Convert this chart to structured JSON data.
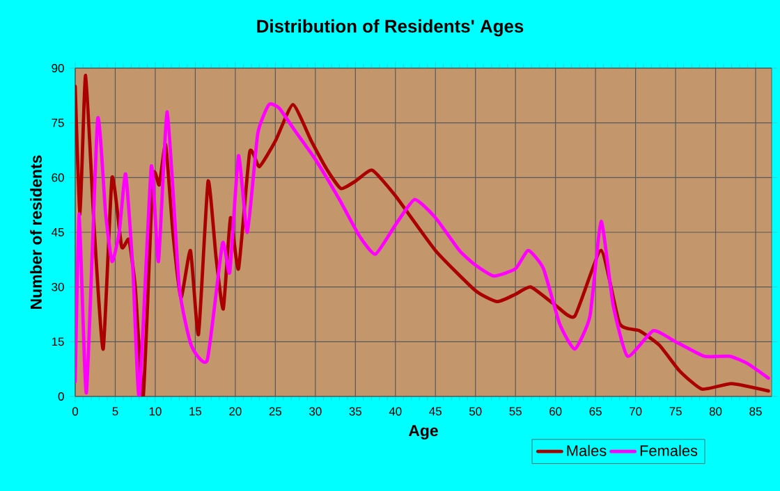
{
  "chart_data": {
    "type": "line",
    "title": "Distribution of Residents' Ages",
    "xlabel": "Age",
    "ylabel": "Number of residents",
    "xlim": [
      0,
      87
    ],
    "xticks": [
      0,
      5,
      10,
      15,
      20,
      25,
      30,
      35,
      40,
      45,
      50,
      55,
      60,
      65,
      70,
      75,
      80,
      85
    ],
    "ylim": [
      0,
      90
    ],
    "yticks": [
      0,
      15,
      30,
      45,
      60,
      75,
      90
    ],
    "grid": true,
    "legend": "bottom",
    "marker": "none",
    "line_style": "solid",
    "series": [
      {
        "name": "Males",
        "color": "#aa0000",
        "x": [
          0,
          0.6,
          1.3,
          2.4,
          3.5,
          4.6,
          5.8,
          6.7,
          7.5,
          8.5,
          9.7,
          10.5,
          11.3,
          12.2,
          13.2,
          14.4,
          15.4,
          16.6,
          17.6,
          18.5,
          19.4,
          20.4,
          21.8,
          23,
          25,
          27.2,
          29.5,
          31.5,
          33.2,
          35,
          37.1,
          40,
          45,
          50,
          52.7,
          55,
          56.9,
          60,
          62.4,
          65.7,
          68,
          70.5,
          73,
          75.5,
          78.3,
          82,
          86.6
        ],
        "values": [
          85,
          50,
          88,
          45,
          13,
          60,
          41,
          43,
          30,
          0,
          60,
          58,
          69,
          45,
          27,
          40,
          17,
          59,
          38,
          24,
          49,
          35,
          67,
          63,
          70,
          80,
          70,
          62,
          57,
          59,
          62,
          55,
          40,
          29,
          26,
          28,
          30,
          25,
          22,
          40,
          20,
          18,
          14,
          7,
          2,
          3.5,
          1.5
        ]
      },
      {
        "name": "Females",
        "color": "#ff00ff",
        "x": [
          0,
          0.5,
          1.4,
          2.8,
          3.8,
          4.6,
          5.5,
          6.3,
          7.2,
          8,
          9.5,
          10.4,
          11.5,
          13,
          14.5,
          16.5,
          18.4,
          19.3,
          20.4,
          21.5,
          22.8,
          24.2,
          25.5,
          27.4,
          30,
          33,
          35.5,
          37.5,
          40,
          42.4,
          45,
          48,
          50,
          52.3,
          55,
          56.6,
          58.5,
          60.5,
          62.4,
          64.3,
          65.7,
          67.2,
          69,
          72.2,
          75,
          78.6,
          81.8,
          84,
          86.6
        ],
        "values": [
          4,
          50,
          1,
          76,
          50,
          37,
          45,
          61,
          35,
          0,
          63,
          37,
          78,
          30,
          14,
          10,
          42,
          34,
          66,
          45,
          72,
          80,
          79,
          73,
          65,
          54,
          44,
          39,
          47,
          54,
          49,
          40,
          36,
          33,
          35,
          40,
          35,
          20,
          13,
          22,
          48,
          25,
          11,
          18,
          15,
          11,
          11,
          9,
          5
        ]
      }
    ]
  }
}
